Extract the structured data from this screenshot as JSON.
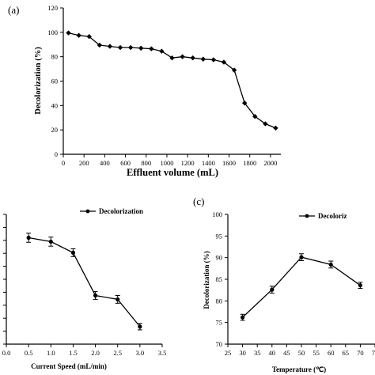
{
  "chart_data": [
    {
      "type": "line",
      "panel_label": "(a)",
      "xlabel": "Effluent volume (mL)",
      "ylabel": "Decolorization (%)",
      "xlim": [
        0,
        2100
      ],
      "ylim": [
        0,
        120
      ],
      "x_ticks": [
        0,
        200,
        400,
        600,
        800,
        1000,
        1200,
        1400,
        1600,
        1800,
        2000
      ],
      "y_ticks": [
        0,
        20,
        40,
        60,
        80,
        100,
        120
      ],
      "marker": "diamond",
      "x": [
        50,
        150,
        250,
        350,
        450,
        550,
        650,
        750,
        850,
        950,
        1050,
        1150,
        1250,
        1350,
        1450,
        1550,
        1650,
        1750,
        1850,
        1950,
        2050
      ],
      "series": [
        {
          "values": [
            99.5,
            97.5,
            96.5,
            89.5,
            88.5,
            87.5,
            87.5,
            87.0,
            86.5,
            84.5,
            79.0,
            80.0,
            79.0,
            78.0,
            77.5,
            75.5,
            69.0,
            42.0,
            31.0,
            25.0,
            21.5
          ]
        }
      ]
    },
    {
      "type": "line",
      "panel_label": "",
      "xlabel": "Current Speed (mL/min)",
      "ylabel": "",
      "xlim": [
        0,
        3.5
      ],
      "ylim": [
        0,
        100
      ],
      "x_ticks": [
        "0.0",
        "0.5",
        "1.0",
        "1.5",
        "2.0",
        "2.5",
        "3.0",
        "3.5"
      ],
      "y_ticks": [
        0,
        10,
        20,
        30,
        40,
        50,
        60,
        70,
        80,
        90,
        100
      ],
      "y_tick_labels_visible": false,
      "legend": {
        "labels": [
          "Decolorization"
        ],
        "position": "top-right"
      },
      "marker": "circle",
      "x": [
        0.5,
        1.0,
        1.5,
        2.0,
        2.5,
        3.0
      ],
      "series": [
        {
          "name": "Decolorization",
          "values": [
            82.0,
            79.0,
            70.5,
            37.5,
            34.5,
            13.5
          ],
          "err": [
            3.5,
            3.5,
            3.0,
            3.0,
            3.0,
            2.5
          ]
        }
      ]
    },
    {
      "type": "line",
      "panel_label": "(c)",
      "xlabel": "Temperature (℃)",
      "ylabel": "Decolorization (%)",
      "xlim": [
        25,
        75
      ],
      "ylim": [
        70,
        100
      ],
      "x_ticks": [
        25,
        30,
        35,
        40,
        45,
        50,
        55,
        60,
        65,
        70,
        75
      ],
      "y_ticks": [
        70,
        75,
        80,
        85,
        90,
        95,
        100
      ],
      "legend": {
        "labels": [
          "Decoloriz"
        ],
        "position": "top-right"
      },
      "marker": "circle",
      "x": [
        30,
        40,
        50,
        60,
        70
      ],
      "series": [
        {
          "name": "Decolorization",
          "values": [
            76.2,
            82.6,
            90.1,
            88.4,
            83.6
          ],
          "err": [
            0.7,
            0.8,
            0.8,
            0.8,
            0.7
          ]
        }
      ]
    }
  ]
}
